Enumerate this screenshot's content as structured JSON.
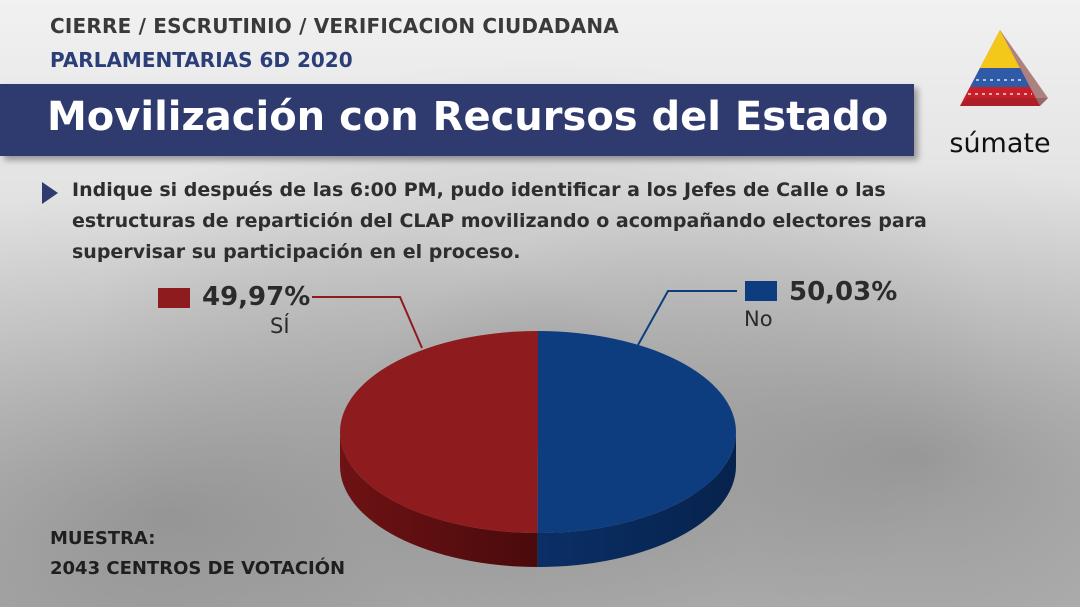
{
  "header": {
    "line1": "CIERRE / ESCRUTINIO / VERIFICACION CIUDADANA",
    "line2": "PARLAMENTARIAS 6D 2020"
  },
  "title": "Movilización con Recursos del Estado",
  "logo": {
    "text": "súmate"
  },
  "question": "Indique si después de las 6:00 PM, pudo identificar a los Jefes de Calle o las estructuras de repartición del CLAP movilizando o acompañando electores para supervisar su participación en el proceso.",
  "chart_data": {
    "type": "pie",
    "slices": [
      {
        "label": "SÍ",
        "value": 49.97,
        "value_label": "49,97%",
        "color": "#8e1b1e"
      },
      {
        "label": "No",
        "value": 50.03,
        "value_label": "50,03%",
        "color": "#0d3d7e"
      }
    ]
  },
  "sample": {
    "label": "MUESTRA:",
    "value": "2043 CENTROS DE VOTACIÓN"
  }
}
